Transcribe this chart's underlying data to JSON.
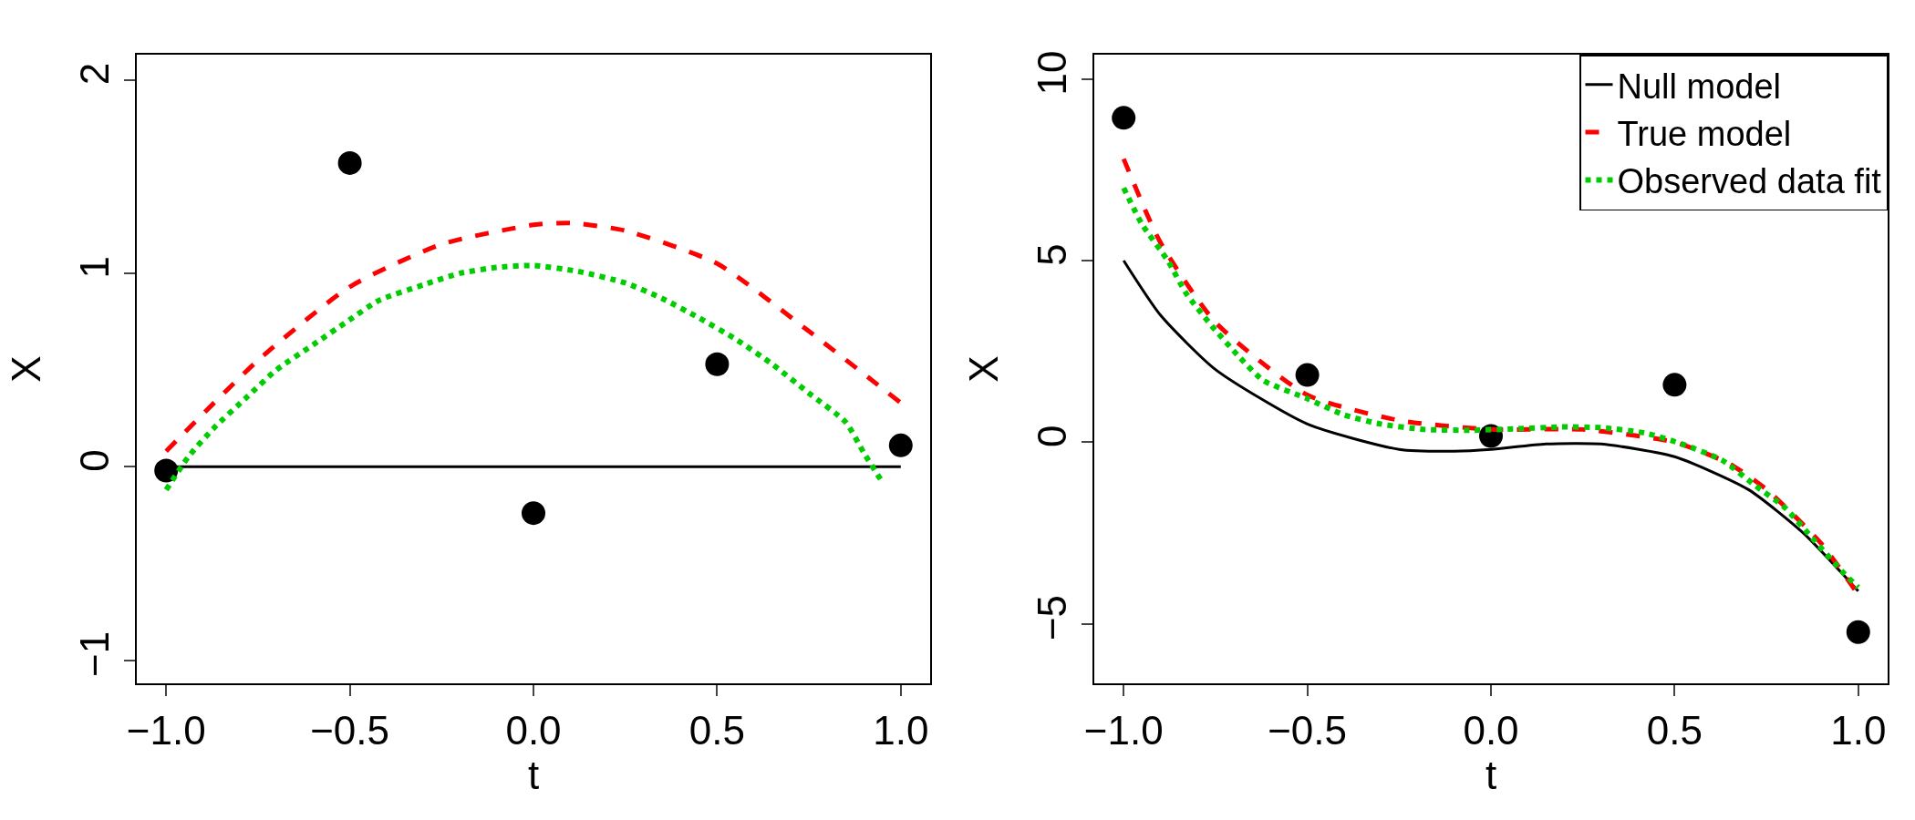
{
  "chart_data": [
    {
      "type": "line",
      "xlabel": "t",
      "ylabel": "X",
      "xlim": [
        -1.08,
        1.08
      ],
      "ylim": [
        -1.12,
        2.13
      ],
      "xticks": [
        {
          "value": -1,
          "label": "−1.0"
        },
        {
          "value": -0.5,
          "label": "−0.5"
        },
        {
          "value": 0,
          "label": "0.0"
        },
        {
          "value": 0.5,
          "label": "0.5"
        },
        {
          "value": 1,
          "label": "1.0"
        }
      ],
      "yticks": [
        {
          "value": -1,
          "label": "−1"
        },
        0,
        1,
        2
      ],
      "grid": false,
      "legend": false,
      "series": [
        {
          "color": "#000000",
          "line_style": "solid",
          "x": [
            -1,
            1
          ],
          "values": [
            0,
            0
          ]
        },
        {
          "color": "#ff0000",
          "line_style": "dashed",
          "x": [
            -1,
            -0.75,
            -0.5,
            -0.25,
            0,
            0.1,
            0.25,
            0.5,
            0.75,
            1
          ],
          "values": [
            0.08,
            0.55,
            0.93,
            1.15,
            1.25,
            1.26,
            1.22,
            1.05,
            0.7,
            0.33
          ]
        },
        {
          "color": "#00cd00",
          "line_style": "dotted",
          "x": [
            -1,
            -0.94,
            -0.87,
            -0.78,
            -0.7,
            -0.6,
            -0.5,
            -0.42,
            -0.3,
            -0.2,
            -0.1,
            0,
            0.12,
            0.25,
            0.35,
            0.45,
            0.55,
            0.65,
            0.75,
            0.85,
            0.9,
            0.95
          ],
          "values": [
            -0.12,
            0.05,
            0.2,
            0.36,
            0.5,
            0.63,
            0.76,
            0.86,
            0.94,
            1.0,
            1.03,
            1.04,
            1.01,
            0.95,
            0.87,
            0.77,
            0.66,
            0.53,
            0.38,
            0.23,
            0.07,
            -0.08
          ]
        },
        {
          "type": "scatter",
          "color": "#000000",
          "marker": "circle",
          "x": [
            -1,
            -0.5,
            0,
            0.5,
            1
          ],
          "values": [
            -0.02,
            1.57,
            -0.24,
            0.53,
            0.11
          ]
        }
      ]
    },
    {
      "type": "line",
      "xlabel": "t",
      "ylabel": "X",
      "xlim": [
        -1.08,
        1.08
      ],
      "ylim": [
        -6.64,
        10.67
      ],
      "xticks": [
        {
          "value": -1,
          "label": "−1.0"
        },
        {
          "value": -0.5,
          "label": "−0.5"
        },
        {
          "value": 0,
          "label": "0.0"
        },
        {
          "value": 0.5,
          "label": "0.5"
        },
        {
          "value": 1,
          "label": "1.0"
        }
      ],
      "yticks": [
        {
          "value": -5,
          "label": "−5"
        },
        0,
        5,
        10
      ],
      "grid": false,
      "legend": "top right",
      "series": [
        {
          "name": "Null model",
          "color": "#000000",
          "line_style": "solid",
          "x": [
            -1,
            -0.9,
            -0.75,
            -0.5,
            -0.25,
            -0.1,
            0,
            0.15,
            0.3,
            0.5,
            0.7,
            0.85,
            1
          ],
          "values": [
            5.0,
            3.5,
            2.0,
            0.5,
            -0.2,
            -0.25,
            -0.2,
            -0.05,
            -0.05,
            -0.4,
            -1.3,
            -2.5,
            -4.1
          ]
        },
        {
          "name": "True model",
          "color": "#ff0000",
          "line_style": "dashed",
          "x": [
            -1,
            -0.9,
            -0.75,
            -0.5,
            -0.25,
            0,
            0.25,
            0.5,
            0.65,
            0.75,
            0.9,
            1
          ],
          "values": [
            7.8,
            5.5,
            3.3,
            1.3,
            0.6,
            0.35,
            0.35,
            0.0,
            -0.6,
            -1.3,
            -2.8,
            -4.2
          ]
        },
        {
          "name": "Observed data fit",
          "color": "#00cd00",
          "line_style": "dotted",
          "x": [
            -1,
            -0.95,
            -0.88,
            -0.83,
            -0.76,
            -0.69,
            -0.62,
            -0.5,
            -0.4,
            -0.3,
            -0.18,
            -0.05,
            0.07,
            0.19,
            0.3,
            0.42,
            0.52,
            0.63,
            0.72,
            0.8,
            0.88,
            0.96,
            1
          ],
          "values": [
            7.0,
            6.0,
            5.0,
            4.1,
            3.2,
            2.4,
            1.7,
            1.2,
            0.75,
            0.5,
            0.35,
            0.33,
            0.37,
            0.42,
            0.4,
            0.25,
            -0.05,
            -0.5,
            -1.2,
            -1.8,
            -2.7,
            -3.6,
            -4.0
          ]
        },
        {
          "type": "scatter",
          "color": "#000000",
          "marker": "circle",
          "x": [
            -1,
            -0.5,
            0,
            0.5,
            1
          ],
          "values": [
            8.93,
            1.85,
            0.17,
            1.58,
            -5.23
          ]
        }
      ]
    }
  ]
}
